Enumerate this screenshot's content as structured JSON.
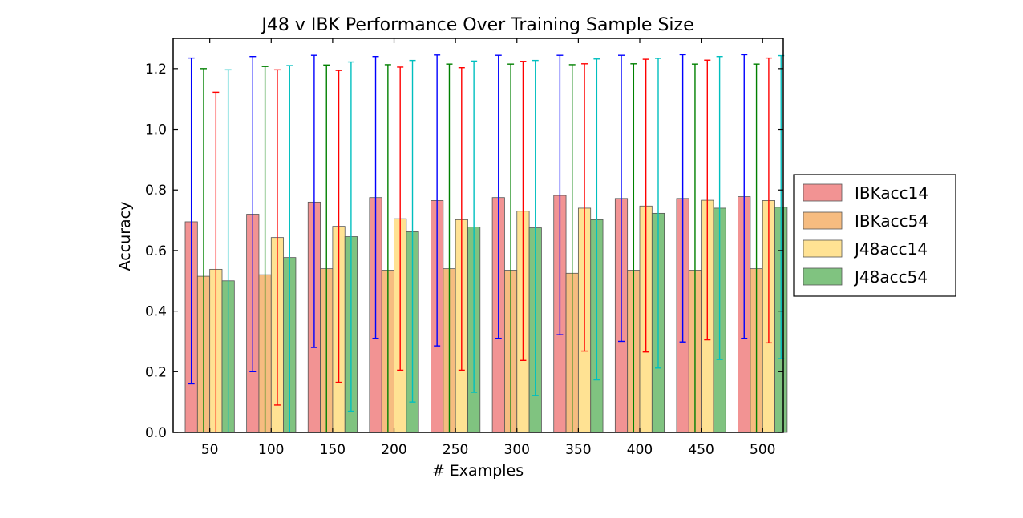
{
  "chart_data": {
    "type": "bar",
    "title": "J48 v IBK Performance Over Training Sample Size",
    "xlabel": "# Examples",
    "ylabel": "Accuracy",
    "ylim": [
      0.0,
      1.3
    ],
    "yticks": [
      "0.0",
      "0.2",
      "0.4",
      "0.6",
      "0.8",
      "1.0",
      "1.2"
    ],
    "categories": [
      "50",
      "100",
      "150",
      "200",
      "250",
      "300",
      "350",
      "400",
      "450",
      "500"
    ],
    "grid": false,
    "legend_position": "right",
    "series": [
      {
        "name": "IBKacc14",
        "color": "#f08080",
        "error_color": "#0000ff",
        "values": [
          0.695,
          0.72,
          0.76,
          0.775,
          0.765,
          0.775,
          0.782,
          0.772,
          0.772,
          0.778
        ],
        "err_low": [
          0.16,
          0.2,
          0.28,
          0.31,
          0.285,
          0.31,
          0.322,
          0.3,
          0.298,
          0.31
        ],
        "err_high": [
          1.235,
          1.24,
          1.244,
          1.24,
          1.245,
          1.244,
          1.244,
          1.244,
          1.246,
          1.246
        ]
      },
      {
        "name": "IBKacc54",
        "color": "#f4b06a",
        "error_color": "#008000",
        "values": [
          0.515,
          0.52,
          0.54,
          0.535,
          0.54,
          0.535,
          0.525,
          0.535,
          0.535,
          0.54
        ],
        "err_low": [
          0.0,
          0.0,
          0.0,
          0.0,
          0.0,
          0.0,
          0.0,
          0.0,
          0.0,
          0.0
        ],
        "err_high": [
          1.2,
          1.207,
          1.212,
          1.213,
          1.215,
          1.215,
          1.213,
          1.216,
          1.215,
          1.215
        ]
      },
      {
        "name": "J48acc14",
        "color": "#ffdd80",
        "error_color": "#ff0000",
        "values": [
          0.538,
          0.643,
          0.68,
          0.705,
          0.702,
          0.73,
          0.74,
          0.747,
          0.766,
          0.765
        ],
        "err_low": [
          0.0,
          0.09,
          0.165,
          0.205,
          0.205,
          0.237,
          0.268,
          0.265,
          0.305,
          0.295
        ],
        "err_high": [
          1.122,
          1.196,
          1.194,
          1.205,
          1.203,
          1.224,
          1.216,
          1.231,
          1.228,
          1.235
        ]
      },
      {
        "name": "J48acc54",
        "color": "#6ab86a",
        "error_color": "#00bfbf",
        "values": [
          0.5,
          0.577,
          0.646,
          0.662,
          0.678,
          0.675,
          0.702,
          0.723,
          0.74,
          0.743
        ],
        "err_low": [
          0.0,
          0.0,
          0.07,
          0.1,
          0.132,
          0.122,
          0.173,
          0.212,
          0.24,
          0.243
        ],
        "err_high": [
          1.196,
          1.21,
          1.222,
          1.227,
          1.225,
          1.227,
          1.232,
          1.234,
          1.24,
          1.243
        ]
      }
    ]
  }
}
